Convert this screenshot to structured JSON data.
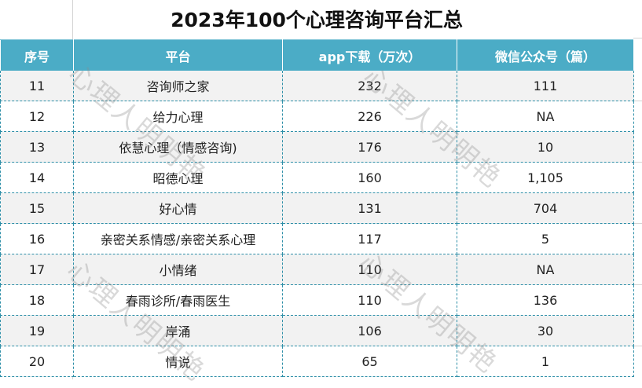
{
  "title": "2023年100个心理咨询平台汇总",
  "headers": {
    "index": "序号",
    "platform": "平台",
    "app_downloads": "app下载（万次）",
    "wechat_articles": "微信公众号（篇）"
  },
  "rows": [
    {
      "index": "11",
      "platform": "咨询师之家",
      "app_downloads": "232",
      "wechat_articles": "111"
    },
    {
      "index": "12",
      "platform": "给力心理",
      "app_downloads": "226",
      "wechat_articles": "NA"
    },
    {
      "index": "13",
      "platform": "依慧心理（情感咨询)",
      "app_downloads": "176",
      "wechat_articles": "10"
    },
    {
      "index": "14",
      "platform": "昭德心理",
      "app_downloads": "160",
      "wechat_articles": "1,105"
    },
    {
      "index": "15",
      "platform": "好心情",
      "app_downloads": "131",
      "wechat_articles": "704"
    },
    {
      "index": "16",
      "platform": "亲密关系情感/亲密关系心理",
      "app_downloads": "117",
      "wechat_articles": "5"
    },
    {
      "index": "17",
      "platform": "小情绪",
      "app_downloads": "110",
      "wechat_articles": "NA"
    },
    {
      "index": "18",
      "platform": "春雨诊所/春雨医生",
      "app_downloads": "110",
      "wechat_articles": "136"
    },
    {
      "index": "19",
      "platform": "岸涌",
      "app_downloads": "106",
      "wechat_articles": "30"
    },
    {
      "index": "20",
      "platform": "情说",
      "app_downloads": "65",
      "wechat_articles": "1"
    }
  ],
  "watermark": "心理人明明艳",
  "colors": {
    "header_bg": "#4bacc6",
    "row_alt": "#f2f2f2",
    "border": "#2e8fa8"
  }
}
